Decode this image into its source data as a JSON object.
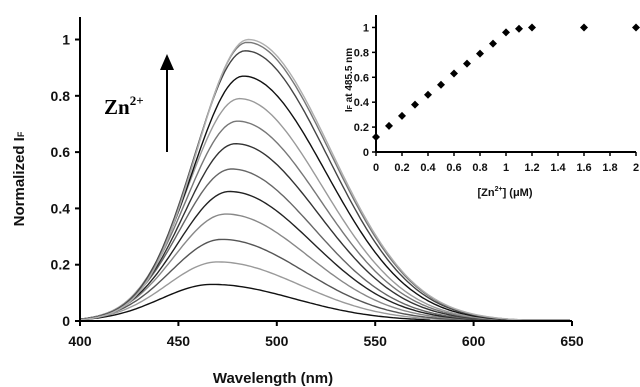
{
  "chart_data": [
    {
      "type": "line",
      "xlabel": "Wavelength (nm)",
      "ylabel": "Normalized I",
      "ylabel_sub": "F",
      "xlim": [
        400,
        650
      ],
      "ylim": [
        0,
        1.08
      ],
      "xticks": [
        "400",
        "450",
        "500",
        "550",
        "600",
        "650"
      ],
      "yticks": [
        "0",
        "0.2",
        "0.4",
        "0.6",
        "0.8",
        "1"
      ],
      "annotation": {
        "text": "Zn",
        "superscript": "2+"
      },
      "series": [
        {
          "peak_x": 467,
          "peak_y": 0.13,
          "color": "#111111"
        },
        {
          "peak_x": 470,
          "peak_y": 0.21,
          "color": "#9a9a9a"
        },
        {
          "peak_x": 472,
          "peak_y": 0.29,
          "color": "#555555"
        },
        {
          "peak_x": 474,
          "peak_y": 0.38,
          "color": "#888888"
        },
        {
          "peak_x": 476,
          "peak_y": 0.46,
          "color": "#222222"
        },
        {
          "peak_x": 477,
          "peak_y": 0.54,
          "color": "#666666"
        },
        {
          "peak_x": 479,
          "peak_y": 0.63,
          "color": "#333333"
        },
        {
          "peak_x": 480,
          "peak_y": 0.71,
          "color": "#777777"
        },
        {
          "peak_x": 481,
          "peak_y": 0.79,
          "color": "#9a9a9a"
        },
        {
          "peak_x": 483,
          "peak_y": 0.87,
          "color": "#111111"
        },
        {
          "peak_x": 484,
          "peak_y": 0.96,
          "color": "#444444"
        },
        {
          "peak_x": 485,
          "peak_y": 0.99,
          "color": "#777777"
        },
        {
          "peak_x": 485.5,
          "peak_y": 1.0,
          "color": "#b0b0b0"
        }
      ]
    },
    {
      "type": "scatter",
      "xlabel": "[Zn",
      "xlabel_sup": "2+",
      "xlabel_rest": "] (μM)",
      "ylabel": "I",
      "ylabel_sub": "F",
      "ylabel_rest": " at 485.5 nm",
      "xlim": [
        0,
        2
      ],
      "ylim": [
        0,
        1.1
      ],
      "xticks": [
        "0",
        "0.2",
        "0.4",
        "0.6",
        "0.8",
        "1",
        "1.2",
        "1.4",
        "1.6",
        "1.8",
        "2"
      ],
      "yticks": [
        "0",
        "0.2",
        "0.4",
        "0.6",
        "0.8",
        "1"
      ],
      "x": [
        0,
        0.1,
        0.2,
        0.3,
        0.4,
        0.5,
        0.6,
        0.7,
        0.8,
        0.9,
        1.0,
        1.1,
        1.2,
        1.6,
        2.0
      ],
      "y": [
        0.12,
        0.21,
        0.29,
        0.38,
        0.46,
        0.54,
        0.63,
        0.71,
        0.79,
        0.87,
        0.96,
        0.99,
        1.0,
        1.0,
        1.0
      ]
    }
  ]
}
